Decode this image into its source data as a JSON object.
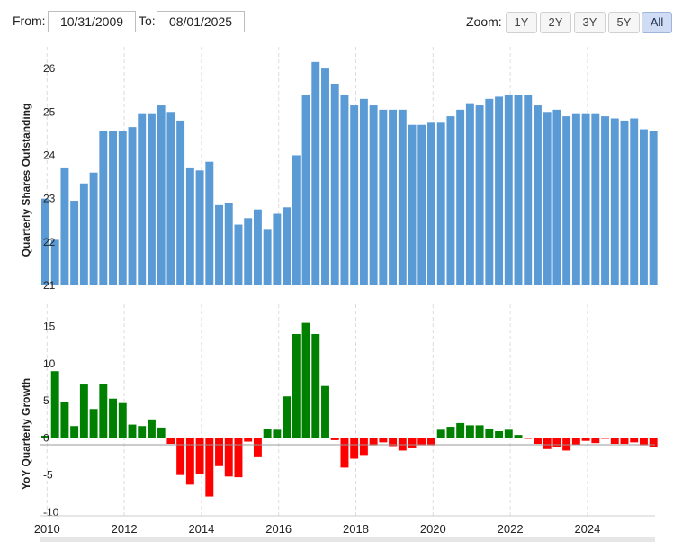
{
  "controls": {
    "from_label": "From:",
    "from_value": "10/31/2009",
    "to_label": "To:",
    "to_value": "08/01/2025",
    "zoom_label": "Zoom:",
    "zoom_buttons": [
      "1Y",
      "2Y",
      "3Y",
      "5Y",
      "All"
    ],
    "zoom_active": "All"
  },
  "chart_data": [
    {
      "type": "bar",
      "ylabel": "Quarterly Shares Outstanding",
      "ylim": [
        21,
        26.5
      ],
      "yticks": [
        "21",
        "22",
        "23",
        "24",
        "25",
        "26"
      ],
      "color": "#5b9bd5",
      "x_start": 2009.83,
      "quarter_step": 0.25,
      "values": [
        23.0,
        22.05,
        23.7,
        22.95,
        23.35,
        23.6,
        24.55,
        24.55,
        24.55,
        24.65,
        24.95,
        24.95,
        25.15,
        25.0,
        24.8,
        23.7,
        23.65,
        23.85,
        22.85,
        22.9,
        22.4,
        22.55,
        22.75,
        22.3,
        22.65,
        22.8,
        24.0,
        25.4,
        26.15,
        26.0,
        25.65,
        25.4,
        25.15,
        25.3,
        25.15,
        25.05,
        25.05,
        25.05,
        24.7,
        24.7,
        24.75,
        24.75,
        24.9,
        25.05,
        25.2,
        25.15,
        25.3,
        25.35,
        25.4,
        25.4,
        25.4,
        25.15,
        25.0,
        25.05,
        24.9,
        24.95,
        24.95,
        24.95,
        24.9,
        24.85,
        24.8,
        24.85,
        24.6,
        24.55
      ]
    },
    {
      "type": "bar",
      "ylabel": "YoY Quarterly Growth",
      "ylim": [
        -10.5,
        18
      ],
      "yticks": [
        "-10",
        "-5",
        "0",
        "5",
        "10",
        "15"
      ],
      "pos_color": "#008000",
      "neg_color": "#ff0000",
      "x_start": 2009.83,
      "quarter_step": 0.25,
      "values": [
        0.3,
        9.0,
        4.9,
        1.6,
        7.2,
        3.9,
        7.3,
        5.3,
        4.7,
        1.8,
        1.6,
        2.5,
        1.4,
        -0.8,
        -5.0,
        -6.3,
        -4.8,
        -7.9,
        -3.8,
        -5.2,
        -5.3,
        -0.5,
        -2.6,
        1.2,
        1.1,
        5.6,
        14.0,
        15.5,
        14.0,
        7.0,
        -0.3,
        -4.0,
        -2.8,
        -2.3,
        -1.0,
        -0.6,
        -1.1,
        -1.7,
        -1.4,
        -1.0,
        -1.0,
        1.1,
        1.5,
        2.0,
        1.7,
        1.7,
        1.2,
        0.9,
        1.1,
        0.4,
        -0.1,
        -0.8,
        -1.5,
        -1.2,
        -1.7,
        -0.9,
        -0.4,
        -0.7,
        -0.1,
        -0.8,
        -0.8,
        -0.6,
        -1.0,
        -1.2
      ]
    }
  ],
  "x_axis": {
    "tick_labels": [
      "2010",
      "2012",
      "2014",
      "2016",
      "2018",
      "2020",
      "2022",
      "2024"
    ],
    "tick_years": [
      2010,
      2012,
      2014,
      2016,
      2018,
      2020,
      2022,
      2024
    ],
    "range": [
      2009.83,
      2025.75
    ]
  }
}
